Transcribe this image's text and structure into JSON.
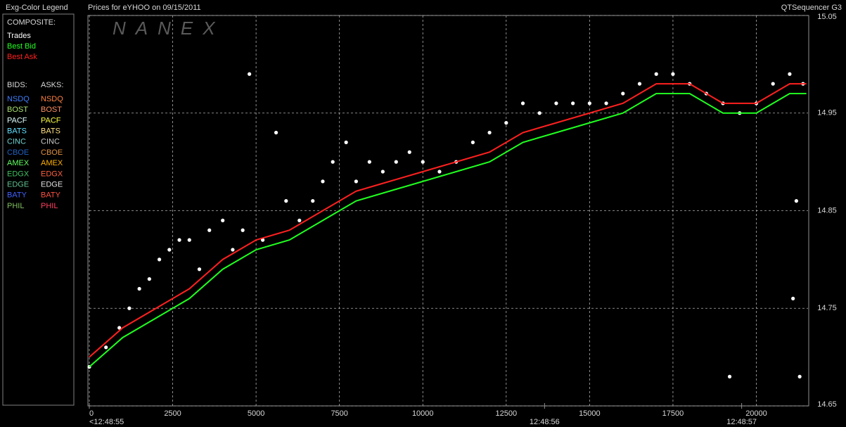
{
  "header": {
    "left": "Exg-Color Legend",
    "center": "Prices for  eYHOO  on  09/15/2011",
    "right": "QTSequencer G3",
    "watermark": "NANEX"
  },
  "legend_panel": {
    "composite_label": "COMPOSITE:",
    "bids_label": "BIDS:",
    "asks_label": "ASKS:",
    "exchanges": [
      {
        "name": "NSDQ",
        "bid_color": "#3f7fff",
        "ask_color": "#ff8040"
      },
      {
        "name": "BOST",
        "bid_color": "#a8e070",
        "ask_color": "#ff9060"
      },
      {
        "name": "PACF",
        "bid_color": "#e0ffff",
        "ask_color": "#ffff40"
      },
      {
        "name": "BATS",
        "bid_color": "#60e0ff",
        "ask_color": "#ffe080"
      },
      {
        "name": "CINC",
        "bid_color": "#70d0d0",
        "ask_color": "#c8c8c8"
      },
      {
        "name": "CBOE",
        "bid_color": "#2060c0",
        "ask_color": "#e09040"
      },
      {
        "name": "AMEX",
        "bid_color": "#60ff60",
        "ask_color": "#ffb000"
      },
      {
        "name": "EDGX",
        "bid_color": "#40c060",
        "ask_color": "#ff6040"
      },
      {
        "name": "EDGE",
        "bid_color": "#60c090",
        "ask_color": "#e0e0e0"
      },
      {
        "name": "BATY",
        "bid_color": "#4060ff",
        "ask_color": "#ff5040"
      },
      {
        "name": "PHIL",
        "bid_color": "#80c060",
        "ask_color": "#ff4060"
      }
    ]
  },
  "chart_data": {
    "type": "line",
    "xlim": [
      0,
      21550
    ],
    "ylim": [
      14.65,
      15.05
    ],
    "xticks": [
      0,
      2500,
      5000,
      7500,
      10000,
      12500,
      15000,
      17500,
      20000
    ],
    "yticks": [
      14.65,
      14.75,
      14.85,
      14.95,
      15.05
    ],
    "time_ticks": [
      {
        "value": 0,
        "label": "<12:48:55"
      },
      {
        "value": 13650,
        "label": "12:48:56"
      },
      {
        "value": 19560,
        "label": "12:48:57"
      }
    ],
    "grid": true,
    "series": [
      {
        "name": "Trades",
        "color": "#ffffff",
        "kind": "scatter",
        "x": [
          0,
          500,
          900,
          1200,
          1500,
          1800,
          2100,
          2400,
          2700,
          3000,
          3300,
          3600,
          4000,
          4300,
          4600,
          4800,
          5200,
          5600,
          5900,
          6300,
          6700,
          7000,
          7300,
          7700,
          8000,
          8400,
          8800,
          9200,
          9600,
          10000,
          10500,
          11000,
          11500,
          12000,
          12500,
          13000,
          13500,
          14000,
          14500,
          15000,
          15500,
          16000,
          16500,
          17000,
          17500,
          18000,
          18500,
          19000,
          19500,
          20000,
          20500,
          21000,
          21400,
          19200,
          21300,
          21200,
          21100
        ],
        "values": [
          14.69,
          14.71,
          14.73,
          14.75,
          14.77,
          14.78,
          14.8,
          14.81,
          14.82,
          14.82,
          14.79,
          14.83,
          14.84,
          14.81,
          14.83,
          14.99,
          14.82,
          14.93,
          14.86,
          14.84,
          14.86,
          14.88,
          14.9,
          14.92,
          14.88,
          14.9,
          14.89,
          14.9,
          14.91,
          14.9,
          14.89,
          14.9,
          14.92,
          14.93,
          14.94,
          14.96,
          14.95,
          14.96,
          14.96,
          14.96,
          14.96,
          14.97,
          14.98,
          14.99,
          14.99,
          14.98,
          14.97,
          14.96,
          14.95,
          14.96,
          14.98,
          14.99,
          14.98,
          14.68,
          14.68,
          14.86,
          14.76
        ]
      },
      {
        "name": "Best Bid",
        "color": "#20ff20",
        "kind": "line",
        "x": [
          0,
          1000,
          2000,
          3000,
          4000,
          5000,
          6000,
          7000,
          8000,
          9000,
          10000,
          11000,
          12000,
          13000,
          14000,
          15000,
          16000,
          17000,
          18000,
          19000,
          20000,
          21000,
          21500
        ],
        "values": [
          14.69,
          14.72,
          14.74,
          14.76,
          14.79,
          14.81,
          14.82,
          14.84,
          14.86,
          14.87,
          14.88,
          14.89,
          14.9,
          14.92,
          14.93,
          14.94,
          14.95,
          14.97,
          14.97,
          14.95,
          14.95,
          14.97,
          14.97
        ]
      },
      {
        "name": "Best Ask",
        "color": "#ff2020",
        "kind": "line",
        "x": [
          0,
          1000,
          2000,
          3000,
          4000,
          5000,
          6000,
          7000,
          8000,
          9000,
          10000,
          11000,
          12000,
          13000,
          14000,
          15000,
          16000,
          17000,
          18000,
          19000,
          20000,
          21000,
          21500
        ],
        "values": [
          14.7,
          14.73,
          14.75,
          14.77,
          14.8,
          14.82,
          14.83,
          14.85,
          14.87,
          14.88,
          14.89,
          14.9,
          14.91,
          14.93,
          14.94,
          14.95,
          14.96,
          14.98,
          14.98,
          14.96,
          14.96,
          14.98,
          14.98
        ]
      }
    ]
  }
}
